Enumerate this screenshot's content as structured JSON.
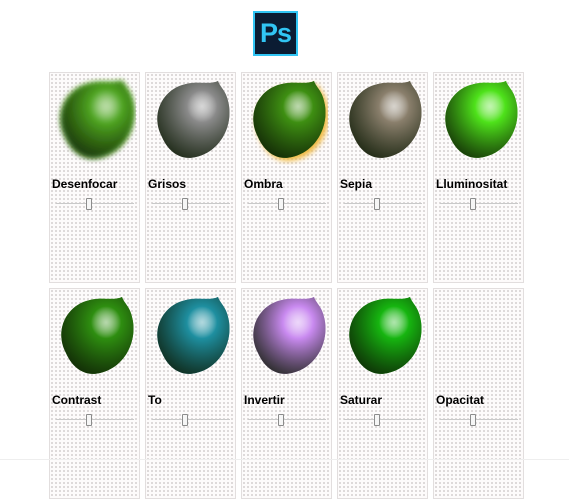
{
  "app": {
    "logo_text": "Ps",
    "logo_colors": {
      "bg": "#0b1c33",
      "fg": "#31c5f4"
    }
  },
  "filters": [
    {
      "label": "Desenfocar",
      "effect": "blur",
      "color": "#4fa81f"
    },
    {
      "label": "Grisos",
      "effect": "grayscale",
      "color": "#8a8a8a"
    },
    {
      "label": "Ombra",
      "effect": "drop-shadow",
      "color": "#3e8f12"
    },
    {
      "label": "Sepia",
      "effect": "sepia",
      "color": "#8a7f6c"
    },
    {
      "label": "Lluminositat",
      "effect": "brightness",
      "color": "#4ee21a"
    },
    {
      "label": "Contrast",
      "effect": "contrast",
      "color": "#2e8e10"
    },
    {
      "label": "To",
      "effect": "hue-rotate",
      "color": "#1e8fa0"
    },
    {
      "label": "Invertir",
      "effect": "invert",
      "color": "#c98af0"
    },
    {
      "label": "Saturar",
      "effect": "saturate",
      "color": "#16b510"
    },
    {
      "label": "Opacitat",
      "effect": "opacity",
      "color": "#3e8f12"
    }
  ]
}
